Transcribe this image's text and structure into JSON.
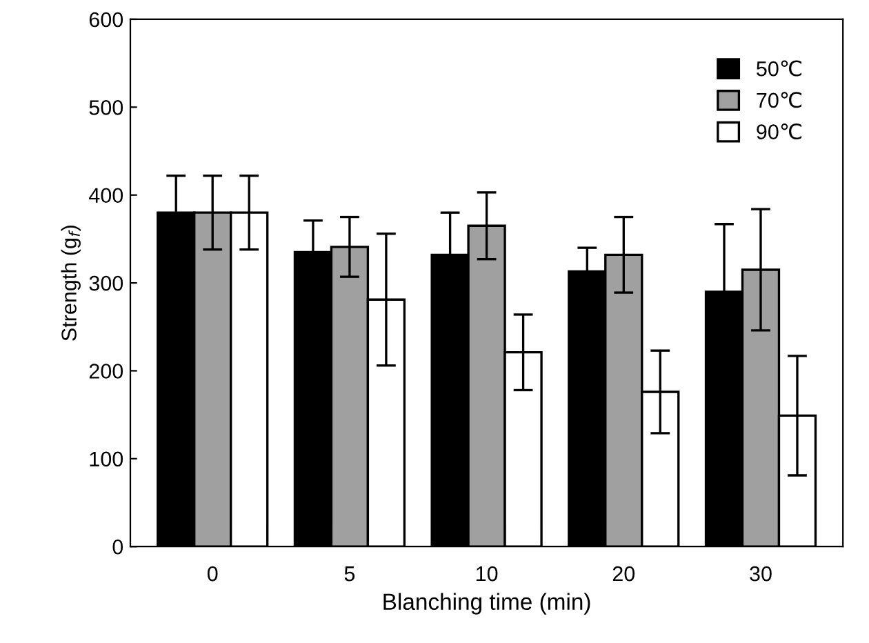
{
  "chart_data": {
    "type": "bar",
    "xlabel": "Blanching time (min)",
    "ylabel": "Strength (g$_{f}$)",
    "categories": [
      "0",
      "5",
      "10",
      "20",
      "30"
    ],
    "series": [
      {
        "name": "50℃",
        "color": "#000000",
        "values": [
          380,
          335,
          332,
          313,
          290
        ],
        "errors": [
          42,
          36,
          48,
          27,
          77
        ]
      },
      {
        "name": "70℃",
        "color": "#a0a0a0",
        "values": [
          380,
          341,
          365,
          332,
          315
        ],
        "errors": [
          42,
          34,
          38,
          43,
          69
        ]
      },
      {
        "name": "90℃",
        "color": "#ffffff",
        "values": [
          380,
          281,
          221,
          176,
          149
        ],
        "errors": [
          42,
          75,
          43,
          47,
          68
        ]
      }
    ],
    "ylim": [
      0,
      600
    ],
    "yticks": [
      0,
      100,
      200,
      300,
      400,
      500,
      600
    ],
    "grid": false,
    "legend": "top right"
  }
}
